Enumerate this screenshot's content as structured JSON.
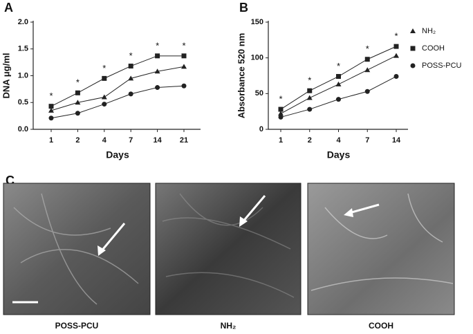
{
  "chart_data": [
    {
      "type": "line",
      "panel": "A",
      "x_label": "Days",
      "y_label": "DNA μg/ml",
      "categories": [
        "1",
        "2",
        "4",
        "7",
        "14",
        "21"
      ],
      "ylim": [
        0,
        2
      ],
      "yticks": [
        {
          "value": 0,
          "label": "0.0"
        },
        0.5,
        {
          "value": 1,
          "label": "1.0"
        },
        1.5,
        {
          "value": 2,
          "label": "2.0"
        }
      ],
      "annotations": [
        "*",
        "*",
        "*",
        "*",
        "*",
        "*"
      ],
      "series": [
        {
          "marker": "triangle",
          "color": "#222",
          "values": [
            0.35,
            0.5,
            0.6,
            0.95,
            1.08,
            1.17
          ]
        },
        {
          "marker": "square",
          "color": "#222",
          "values": [
            0.43,
            0.68,
            0.95,
            1.18,
            1.37,
            1.37
          ]
        },
        {
          "marker": "circle",
          "color": "#222",
          "values": [
            0.21,
            0.3,
            0.47,
            0.66,
            0.78,
            0.81
          ]
        }
      ]
    },
    {
      "type": "line",
      "panel": "B",
      "x_label": "Days",
      "y_label": "Absorbance 520 nm",
      "categories": [
        "1",
        "2",
        "4",
        "7",
        "14"
      ],
      "ylim": [
        0,
        150
      ],
      "yticks": [
        0,
        50,
        100,
        150
      ],
      "annotations": [
        "*",
        "*",
        "*",
        "*",
        "*"
      ],
      "series": [
        {
          "name": "NH₂",
          "marker": "triangle",
          "color": "#222",
          "values": [
            22,
            44,
            63,
            83,
            103
          ]
        },
        {
          "name": "COOH",
          "marker": "square",
          "color": "#222",
          "values": [
            28,
            54,
            74,
            98,
            116
          ]
        },
        {
          "name": "POSS-PCU",
          "marker": "circle",
          "color": "#222",
          "values": [
            17,
            28,
            42,
            53,
            74
          ]
        }
      ]
    }
  ],
  "panel_c": {
    "panel": "C",
    "images": [
      {
        "label": "POSS-PCU"
      },
      {
        "label": "NH₂"
      },
      {
        "label": "COOH"
      }
    ]
  }
}
